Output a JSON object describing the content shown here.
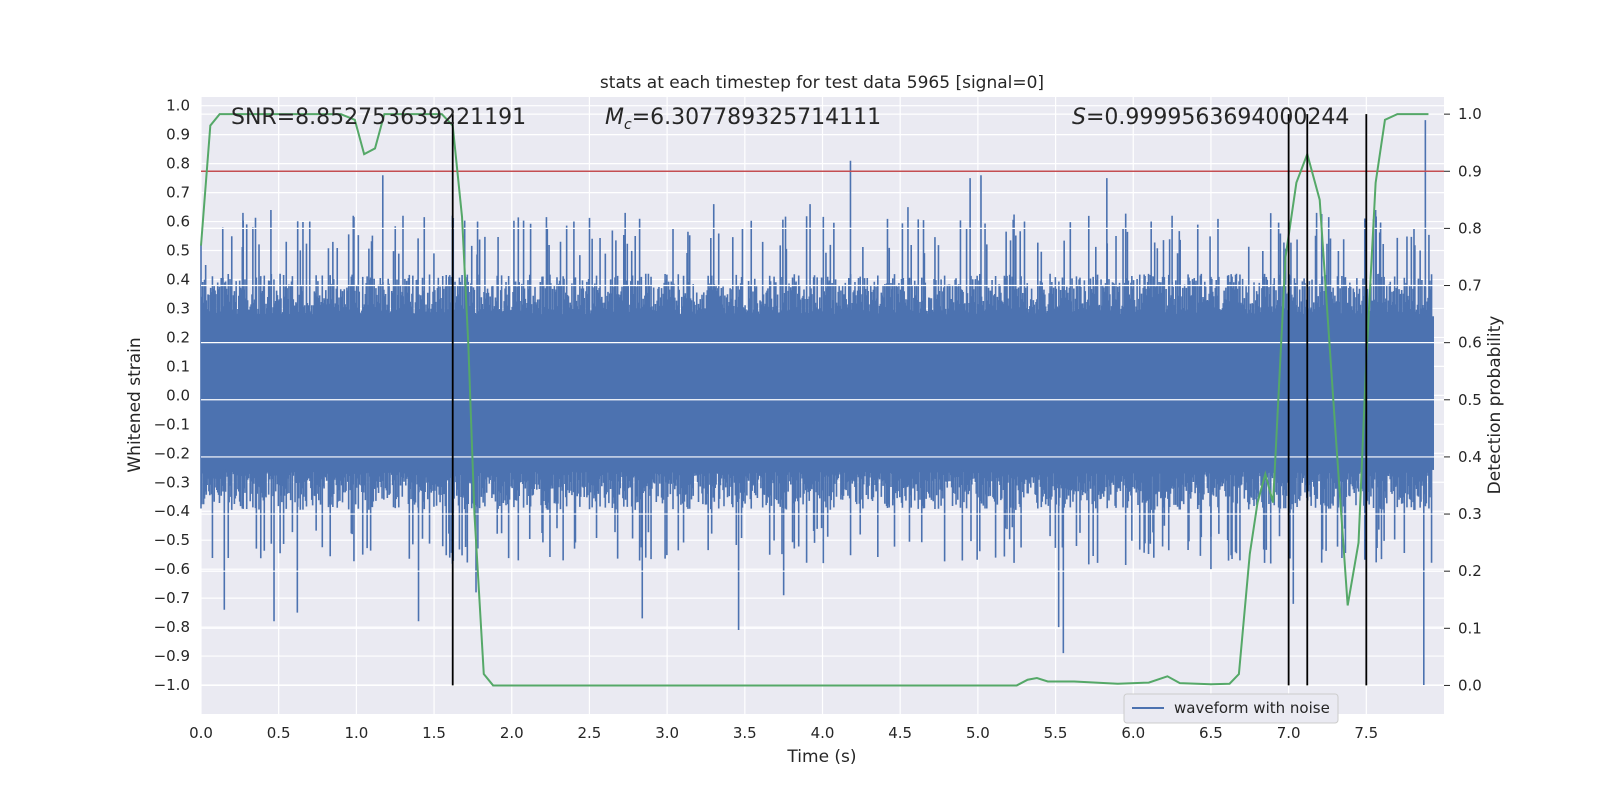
{
  "chart_data": {
    "type": "line",
    "title": "stats at each timestep for test data 5965 [signal=0]",
    "xlabel": "Time (s)",
    "ylabel": "Whitened strain",
    "ylabel_right": "Detection probability",
    "xlim": [
      0.0,
      8.0
    ],
    "ylim": [
      -1.1,
      1.03
    ],
    "ylim_right": [
      -0.05,
      1.03
    ],
    "grid": true,
    "x_ticks": [
      "0.0",
      "0.5",
      "1.0",
      "1.5",
      "2.0",
      "2.5",
      "3.0",
      "3.5",
      "4.0",
      "4.5",
      "5.0",
      "5.5",
      "6.0",
      "6.5",
      "7.0",
      "7.5"
    ],
    "y_ticks": [
      "1.0",
      "0.9",
      "0.8",
      "0.7",
      "0.6",
      "0.5",
      "0.4",
      "0.3",
      "0.2",
      "0.1",
      "0.0",
      "−0.1",
      "−0.2",
      "−0.3",
      "−0.4",
      "−0.5",
      "−0.6",
      "−0.7",
      "−0.8",
      "−0.9",
      "−1.0"
    ],
    "y_ticks_right": [
      "1.0",
      "0.9",
      "0.8",
      "0.7",
      "0.6",
      "0.5",
      "0.4",
      "0.3",
      "0.2",
      "0.1",
      "0.0"
    ],
    "annotations": {
      "snr": "SNR=8.852753639221191",
      "mc_symbol": "M",
      "mc_sub": "c",
      "mc_value": "=6.307789325714111",
      "s_symbol": "S",
      "s_value": "=0.9999563694000244"
    },
    "threshold": {
      "value": 0.9,
      "axis": "right",
      "color": "#c44e52"
    },
    "detection_lines": {
      "x": [
        1.62,
        7.0,
        7.12,
        7.5
      ],
      "ymin": 0.0,
      "ymax": 1.0,
      "axis": "right",
      "color": "#000000"
    },
    "series": [
      {
        "name": "waveform with noise",
        "axis": "left",
        "color": "#4c72b0",
        "description": "dense whitened noise, bulk amplitude ~0.3, peaks listed",
        "envelope_hi": 0.35,
        "envelope_lo": -0.33,
        "peaks": [
          {
            "x": 0.03,
            "y": 0.45
          },
          {
            "x": 0.14,
            "y": 0.58
          },
          {
            "x": 0.27,
            "y": 0.63
          },
          {
            "x": 0.45,
            "y": 0.64
          },
          {
            "x": 0.7,
            "y": 0.6
          },
          {
            "x": 0.98,
            "y": 0.62
          },
          {
            "x": 1.17,
            "y": 0.76
          },
          {
            "x": 1.3,
            "y": 0.62
          },
          {
            "x": 1.78,
            "y": 0.6
          },
          {
            "x": 2.4,
            "y": 0.6
          },
          {
            "x": 2.73,
            "y": 0.63
          },
          {
            "x": 3.3,
            "y": 0.66
          },
          {
            "x": 3.92,
            "y": 0.66
          },
          {
            "x": 4.18,
            "y": 0.81
          },
          {
            "x": 4.55,
            "y": 0.65
          },
          {
            "x": 4.95,
            "y": 0.75
          },
          {
            "x": 5.02,
            "y": 0.76
          },
          {
            "x": 5.3,
            "y": 0.6
          },
          {
            "x": 5.83,
            "y": 0.75
          },
          {
            "x": 6.25,
            "y": 0.62
          },
          {
            "x": 7.18,
            "y": 0.63
          },
          {
            "x": 7.56,
            "y": 0.64
          },
          {
            "x": 7.88,
            "y": 0.95
          },
          {
            "x": 0.15,
            "y": -0.74
          },
          {
            "x": 0.47,
            "y": -0.78
          },
          {
            "x": 0.62,
            "y": -0.75
          },
          {
            "x": 1.4,
            "y": -0.78
          },
          {
            "x": 1.77,
            "y": -0.68
          },
          {
            "x": 2.84,
            "y": -0.77
          },
          {
            "x": 3.46,
            "y": -0.81
          },
          {
            "x": 3.75,
            "y": -0.69
          },
          {
            "x": 5.52,
            "y": -0.8
          },
          {
            "x": 5.55,
            "y": -0.89
          },
          {
            "x": 7.03,
            "y": -0.72
          },
          {
            "x": 7.87,
            "y": -1.0
          },
          {
            "x": 6.5,
            "y": -0.6
          },
          {
            "x": 4.9,
            "y": -0.57
          }
        ]
      },
      {
        "name": "detection probability",
        "axis": "right",
        "color": "#55a868",
        "x": [
          0.0,
          0.06,
          0.12,
          0.9,
          0.99,
          1.05,
          1.12,
          1.18,
          1.55,
          1.62,
          1.68,
          1.72,
          1.76,
          1.82,
          1.88,
          2.5,
          3.0,
          3.5,
          4.0,
          4.5,
          5.0,
          5.25,
          5.32,
          5.38,
          5.45,
          5.62,
          5.9,
          6.1,
          6.22,
          6.3,
          6.5,
          6.62,
          6.68,
          6.75,
          6.8,
          6.85,
          6.9,
          6.98,
          7.05,
          7.12,
          7.2,
          7.3,
          7.38,
          7.45,
          7.5,
          7.56,
          7.62,
          7.7,
          7.8,
          7.9
        ],
        "y": [
          0.77,
          0.98,
          1.0,
          1.0,
          0.99,
          0.93,
          0.94,
          1.0,
          1.0,
          0.98,
          0.82,
          0.6,
          0.3,
          0.02,
          0.0,
          0.0,
          0.0,
          0.0,
          0.0,
          0.0,
          0.0,
          0.0,
          0.01,
          0.013,
          0.007,
          0.007,
          0.003,
          0.005,
          0.016,
          0.004,
          0.002,
          0.003,
          0.02,
          0.23,
          0.32,
          0.37,
          0.32,
          0.75,
          0.88,
          0.93,
          0.85,
          0.45,
          0.14,
          0.25,
          0.57,
          0.88,
          0.99,
          1.0,
          1.0,
          1.0
        ]
      }
    ],
    "legend": {
      "entries": [
        "waveform with noise"
      ],
      "placement": "lower-center-right"
    }
  }
}
